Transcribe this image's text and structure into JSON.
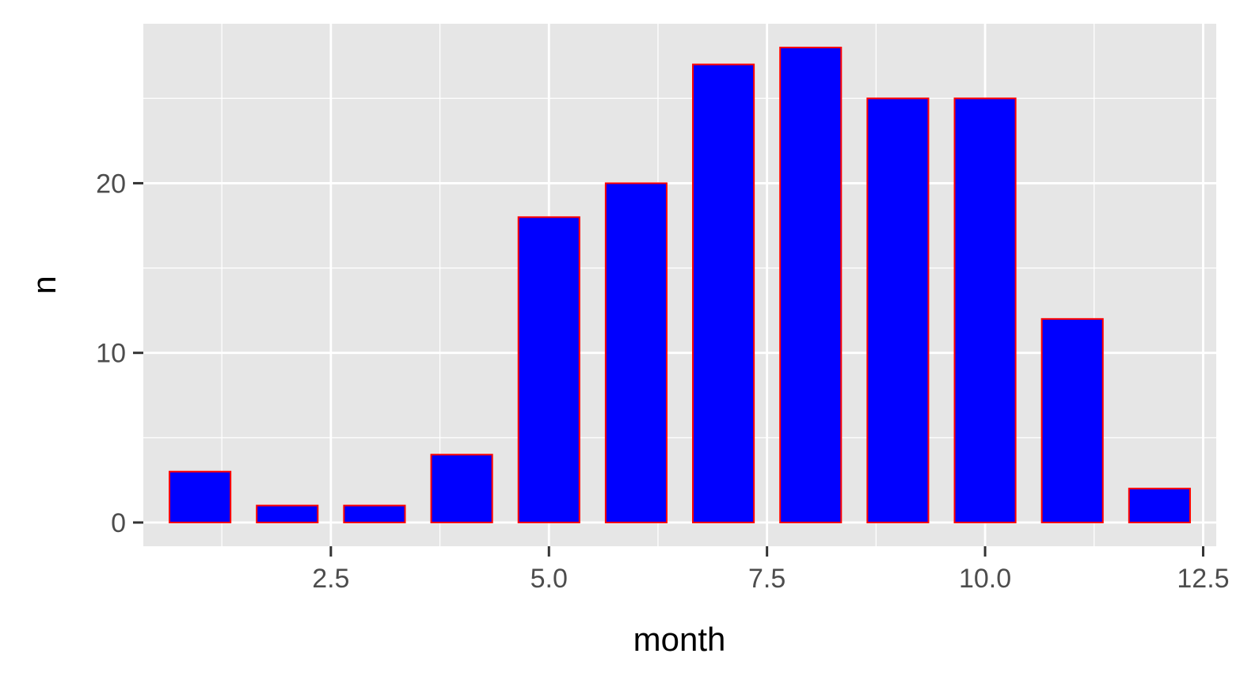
{
  "chart_data": {
    "type": "bar",
    "title": "",
    "xlabel": "month",
    "ylabel": "n",
    "x": [
      1,
      2,
      3,
      4,
      5,
      6,
      7,
      8,
      9,
      10,
      11,
      12
    ],
    "values": [
      3,
      1,
      1,
      4,
      18,
      20,
      27,
      28,
      25,
      25,
      12,
      2
    ],
    "xlim": [
      0.35,
      12.65
    ],
    "ylim": [
      -1.4,
      29.4
    ],
    "x_ticks": [
      2.5,
      5.0,
      7.5,
      10.0,
      12.5
    ],
    "x_tick_labels": [
      "2.5",
      "5.0",
      "7.5",
      "10.0",
      "12.5"
    ],
    "y_ticks": [
      0,
      10,
      20
    ],
    "y_tick_labels": [
      "0",
      "10",
      "20"
    ],
    "grid": true,
    "legend": "none",
    "colors": {
      "panel_background": "#e6e6e6",
      "grid": "#ffffff",
      "bar_fill": "#0000ff",
      "bar_outline": "#ff0000",
      "tick_mark": "#333333",
      "tick_label": "#4d4d4d"
    }
  }
}
